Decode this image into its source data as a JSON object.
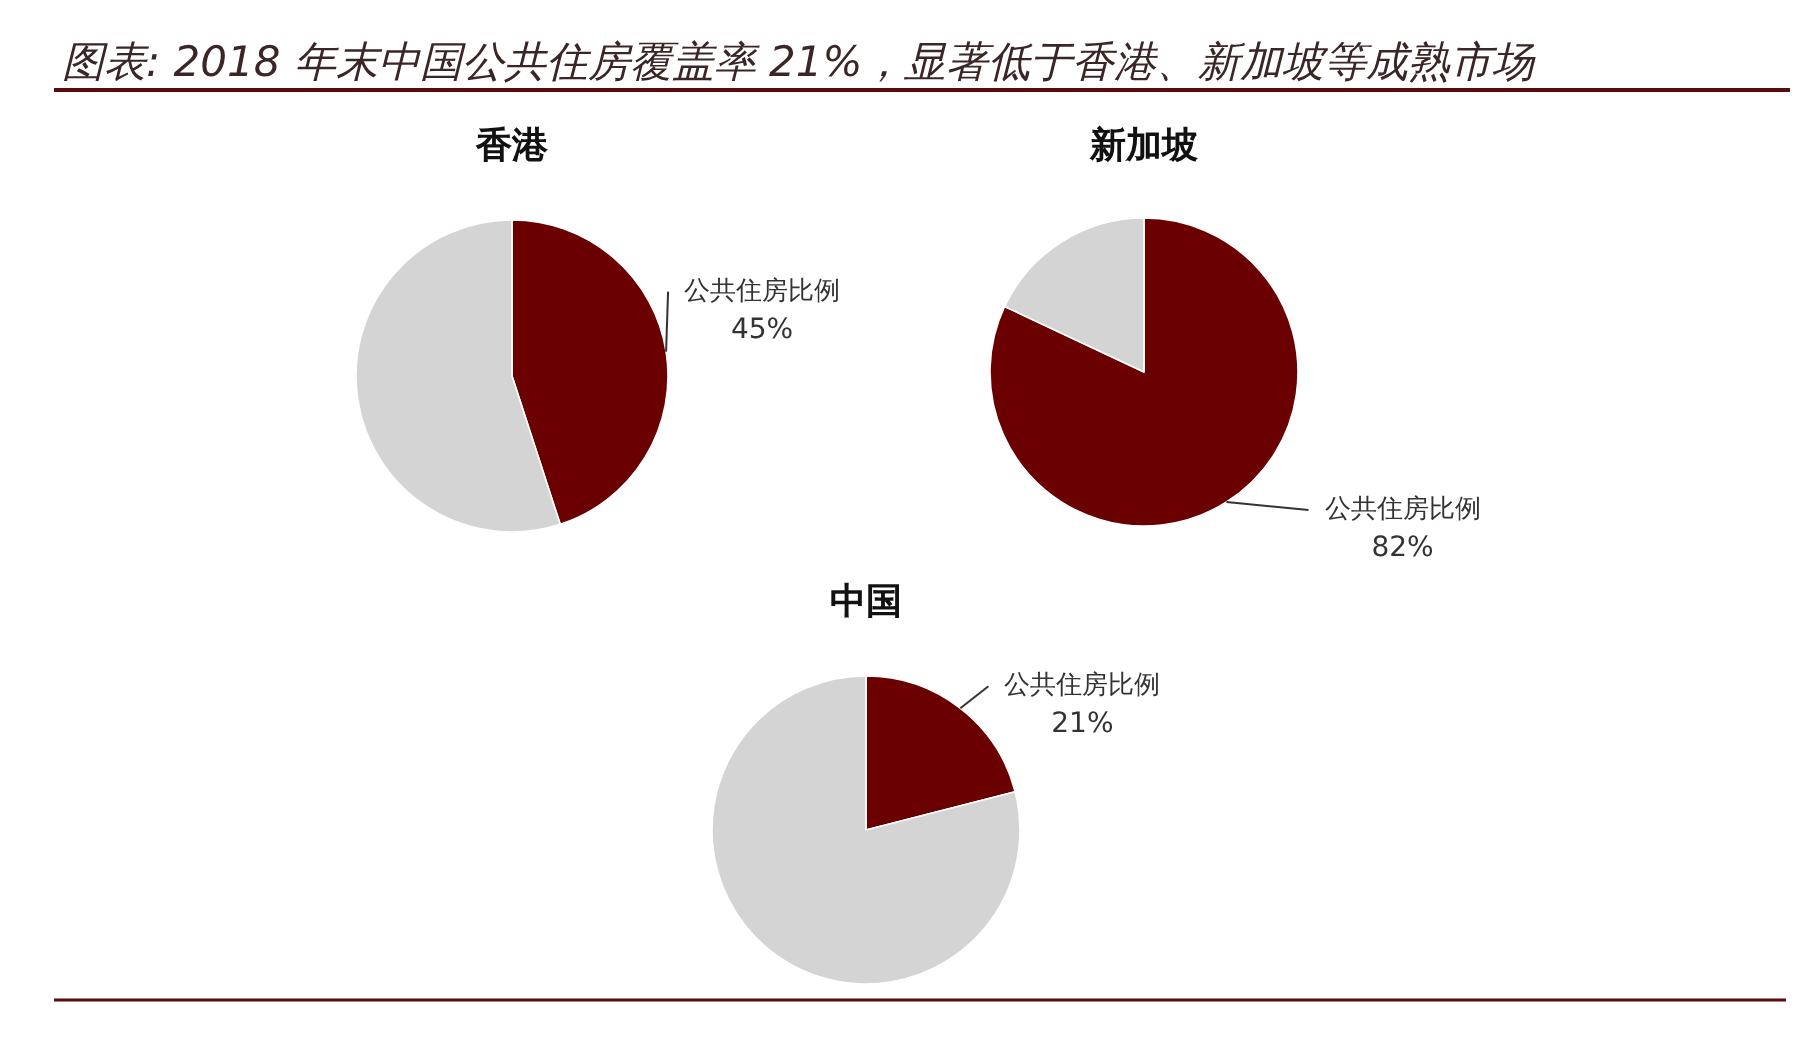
{
  "chart_data": [
    {
      "type": "other",
      "title": "图表: 2018 年末中国公共住房覆盖率 21%，显著低于香港、新加坡等成熟市场"
    },
    {
      "type": "pie",
      "title": "香港",
      "categories": [
        "公共住房比例",
        null
      ],
      "values": [
        45,
        55
      ],
      "colors": [
        "#6b0000",
        "#d4d4d4"
      ],
      "value_labels": [
        "45%",
        null
      ]
    },
    {
      "type": "pie",
      "title": "新加坡",
      "categories": [
        "公共住房比例",
        null
      ],
      "values": [
        82,
        18
      ],
      "colors": [
        "#6b0000",
        "#d4d4d4"
      ],
      "value_labels": [
        "82%",
        null
      ]
    },
    {
      "type": "pie",
      "title": "中国",
      "categories": [
        "公共住房比例",
        null
      ],
      "values": [
        21,
        79
      ],
      "colors": [
        "#6b0000",
        "#d4d4d4"
      ],
      "value_labels": [
        "21%",
        null
      ]
    }
  ]
}
